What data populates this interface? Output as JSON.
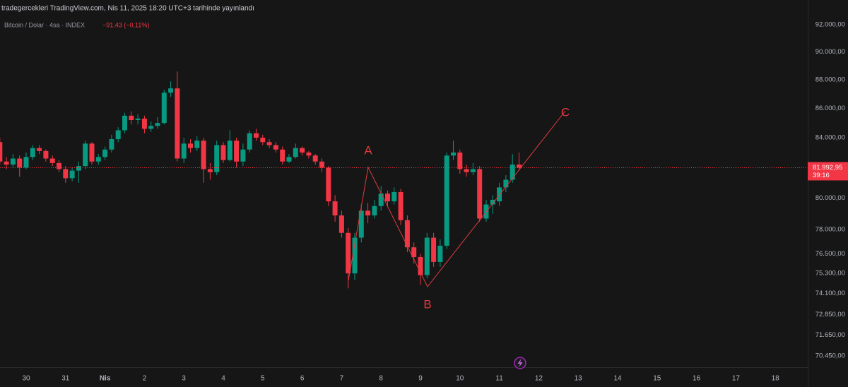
{
  "chart_data": {
    "type": "candlestick",
    "title": "tradegercekleri TradingView.com, Nis 11, 2025 18:20 UTC+3 tarihinde yayınlandı",
    "subtitle": "Bitcoin / Dolar · 4sa · INDEX",
    "change": "−91,43 (−0,11%)",
    "up_color": "#089981",
    "down_color": "#f23645",
    "log_scale": true,
    "grid": false,
    "ylim": [
      69820,
      93850
    ],
    "yticks": [
      {
        "value": 92000,
        "label": "92.000,00"
      },
      {
        "value": 90000,
        "label": "90.000,00"
      },
      {
        "value": 88000,
        "label": "88.000,00"
      },
      {
        "value": 86000,
        "label": "86.000,00"
      },
      {
        "value": 84000,
        "label": "84.000,00"
      },
      {
        "value": 80000,
        "label": "80.000,00"
      },
      {
        "value": 78000,
        "label": "78.000,00"
      },
      {
        "value": 76500,
        "label": "76.500,00"
      },
      {
        "value": 75300,
        "label": "75.300,00"
      },
      {
        "value": 74100,
        "label": "74.100,00"
      },
      {
        "value": 72850,
        "label": "72.850,00"
      },
      {
        "value": 71650,
        "label": "71.650,00"
      },
      {
        "value": 70450,
        "label": "70.450,00"
      }
    ],
    "xticks": [
      {
        "value": 4,
        "label": "30"
      },
      {
        "value": 10,
        "label": "31"
      },
      {
        "value": 16,
        "label": "Nis"
      },
      {
        "value": 22,
        "label": "2"
      },
      {
        "value": 28,
        "label": "3"
      },
      {
        "value": 34,
        "label": "4"
      },
      {
        "value": 40,
        "label": "5"
      },
      {
        "value": 46,
        "label": "6"
      },
      {
        "value": 52,
        "label": "7"
      },
      {
        "value": 58,
        "label": "8"
      },
      {
        "value": 64,
        "label": "9"
      },
      {
        "value": 70,
        "label": "10"
      },
      {
        "value": 76,
        "label": "11"
      },
      {
        "value": 82,
        "label": "12"
      },
      {
        "value": 88,
        "label": "13"
      },
      {
        "value": 94,
        "label": "14"
      },
      {
        "value": 100,
        "label": "15"
      },
      {
        "value": 106,
        "label": "16"
      },
      {
        "value": 112,
        "label": "17"
      },
      {
        "value": 118,
        "label": "18"
      }
    ],
    "open": [
      83700,
      82400,
      82200,
      82600,
      82000,
      82700,
      83300,
      83100,
      82600,
      82300,
      81900,
      81300,
      81800,
      82100,
      83600,
      82400,
      82700,
      83200,
      83900,
      84500,
      85500,
      85200,
      85300,
      84600,
      84800,
      85000,
      87100,
      87400,
      82600,
      83600,
      83300,
      83800,
      81900,
      81700,
      83500,
      82500,
      83800,
      82400,
      83200,
      84300,
      84000,
      83700,
      83500,
      83200,
      82400,
      82700,
      83300,
      83000,
      82800,
      82400,
      82000,
      79800,
      78900,
      77800,
      75300,
      77500,
      79200,
      78900,
      79500,
      80300,
      79800,
      80400,
      78600,
      76900,
      76300,
      75200,
      77500,
      76000,
      77000,
      82800,
      83000,
      81900,
      81700,
      81900,
      78700,
      79600,
      79800,
      80700,
      81200,
      82200
    ],
    "high": [
      84000,
      82700,
      82900,
      82800,
      83000,
      83500,
      83500,
      83200,
      82800,
      82500,
      82100,
      82000,
      82400,
      83800,
      83700,
      82900,
      83400,
      84200,
      84700,
      85700,
      85800,
      85600,
      85500,
      85100,
      85400,
      87300,
      87900,
      88600,
      84000,
      83900,
      84100,
      84000,
      82300,
      83800,
      83700,
      84500,
      84000,
      83600,
      84500,
      84600,
      84200,
      83900,
      83700,
      83400,
      82900,
      83600,
      83400,
      83100,
      82900,
      82600,
      82100,
      80200,
      79200,
      78100,
      77800,
      79600,
      79700,
      79900,
      80800,
      80500,
      80700,
      80600,
      78900,
      77200,
      76500,
      77800,
      77800,
      77400,
      83000,
      83800,
      83200,
      82200,
      82300,
      82100,
      79900,
      80200,
      81000,
      81500,
      82900,
      83000
    ],
    "low": [
      82200,
      81900,
      82000,
      81400,
      81900,
      82500,
      82900,
      82400,
      82100,
      81700,
      81000,
      81100,
      81000,
      81900,
      82200,
      82200,
      82500,
      83000,
      83700,
      84300,
      84900,
      84900,
      84300,
      84400,
      84600,
      84900,
      86800,
      82400,
      82300,
      83000,
      83100,
      81000,
      81200,
      81500,
      82300,
      82400,
      82000,
      82100,
      83000,
      83800,
      83500,
      83300,
      83000,
      82200,
      82300,
      82600,
      82800,
      82600,
      82200,
      81700,
      79500,
      78500,
      77500,
      74400,
      74900,
      77200,
      78400,
      78700,
      79200,
      79500,
      79600,
      78300,
      76600,
      75900,
      74600,
      75000,
      75700,
      75700,
      76800,
      82500,
      81600,
      81400,
      81500,
      78500,
      78500,
      79000,
      79500,
      80400,
      81000,
      81900
    ],
    "close": [
      82400,
      82200,
      82600,
      82000,
      82700,
      83300,
      83100,
      82600,
      82300,
      81900,
      81300,
      81800,
      82100,
      83600,
      82400,
      82700,
      83200,
      83900,
      84500,
      85500,
      85200,
      85300,
      84600,
      84800,
      85000,
      87100,
      87400,
      82600,
      83600,
      83300,
      83800,
      81900,
      81700,
      83500,
      82500,
      83800,
      82400,
      83200,
      84300,
      84000,
      83700,
      83500,
      83200,
      82400,
      82700,
      83300,
      83000,
      82800,
      82400,
      82000,
      79800,
      78900,
      77800,
      75300,
      77500,
      79200,
      78900,
      79500,
      80300,
      79800,
      80400,
      78600,
      76900,
      76300,
      75200,
      77500,
      76000,
      77000,
      82800,
      83000,
      81900,
      81700,
      81900,
      78700,
      79600,
      79900,
      80700,
      81200,
      82200,
      81993
    ],
    "last_price": {
      "value": 81992.95,
      "label": "81.992,95"
    },
    "countdown": "39:16",
    "annotations": [
      "A",
      "B",
      "C"
    ]
  }
}
